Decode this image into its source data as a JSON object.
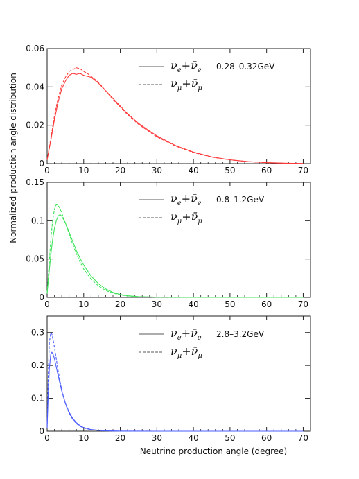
{
  "figure": {
    "ylabel": "Normalized production angle distribution",
    "xlabel": "Neutrino production angle (degree)"
  },
  "chart_data": [
    {
      "type": "line",
      "xlim": [
        0,
        72
      ],
      "ylim": [
        0,
        0.06
      ],
      "xticks": [
        "0",
        "10",
        "20",
        "30",
        "40",
        "50",
        "60",
        "70"
      ],
      "yticks": [
        "0",
        "0.02",
        "0.04",
        "0.06"
      ],
      "color": "#ff3b3b",
      "legend": {
        "energy": "0.28–0.32GeV"
      },
      "series": [
        {
          "name": "νe+ν̄e",
          "style": "solid",
          "x": [
            0,
            1,
            2,
            3,
            4,
            5,
            6,
            7,
            8,
            9,
            10,
            11,
            12,
            14,
            16,
            18,
            20,
            22,
            25,
            28,
            30,
            35,
            40,
            45,
            50,
            55,
            60,
            65,
            70
          ],
          "y": [
            0.002,
            0.012,
            0.023,
            0.032,
            0.039,
            0.043,
            0.046,
            0.047,
            0.0465,
            0.047,
            0.046,
            0.0455,
            0.045,
            0.042,
            0.038,
            0.034,
            0.03,
            0.026,
            0.021,
            0.017,
            0.0145,
            0.0095,
            0.006,
            0.0035,
            0.002,
            0.001,
            0.0005,
            0.0002,
            0.0001
          ]
        },
        {
          "name": "νμ+ν̄μ",
          "style": "dashed",
          "x": [
            0,
            1,
            2,
            3,
            4,
            5,
            6,
            7,
            8,
            9,
            10,
            11,
            12,
            14,
            16,
            18,
            20,
            22,
            25,
            28,
            30,
            35,
            40,
            45,
            50,
            55,
            60,
            65,
            70
          ],
          "y": [
            0.002,
            0.013,
            0.025,
            0.034,
            0.041,
            0.045,
            0.048,
            0.049,
            0.05,
            0.0495,
            0.048,
            0.047,
            0.0455,
            0.0425,
            0.038,
            0.0335,
            0.0295,
            0.0255,
            0.0205,
            0.0165,
            0.014,
            0.0092,
            0.0058,
            0.0034,
            0.0019,
            0.001,
            0.0005,
            0.0002,
            0.0001
          ]
        }
      ]
    },
    {
      "type": "line",
      "xlim": [
        0,
        72
      ],
      "ylim": [
        0,
        0.15
      ],
      "xticks": [
        "0",
        "10",
        "20",
        "30",
        "40",
        "50",
        "60",
        "70"
      ],
      "yticks": [
        "0",
        "0.05",
        "0.1",
        "0.15"
      ],
      "color": "#3fe35a",
      "legend": {
        "energy": "0.8–1.2GeV"
      },
      "series": [
        {
          "name": "νe+ν̄e",
          "style": "solid",
          "x": [
            0,
            0.5,
            1,
            1.5,
            2,
            2.5,
            3,
            3.5,
            4,
            5,
            6,
            7,
            8,
            9,
            10,
            12,
            14,
            16,
            18,
            20,
            22,
            25,
            30,
            40,
            50,
            60,
            70
          ],
          "y": [
            0.005,
            0.03,
            0.055,
            0.075,
            0.09,
            0.1,
            0.106,
            0.108,
            0.106,
            0.097,
            0.085,
            0.073,
            0.061,
            0.051,
            0.042,
            0.028,
            0.018,
            0.011,
            0.0065,
            0.0038,
            0.0022,
            0.001,
            0.0003,
            0.0001,
            0,
            0,
            0
          ]
        },
        {
          "name": "νμ+ν̄μ",
          "style": "dashed",
          "x": [
            0,
            0.5,
            1,
            1.5,
            2,
            2.5,
            3,
            3.5,
            4,
            5,
            6,
            7,
            8,
            9,
            10,
            12,
            14,
            16,
            18,
            20,
            22,
            25,
            30,
            40,
            50,
            60,
            70
          ],
          "y": [
            0.006,
            0.04,
            0.075,
            0.1,
            0.115,
            0.121,
            0.12,
            0.116,
            0.11,
            0.097,
            0.083,
            0.069,
            0.057,
            0.046,
            0.037,
            0.024,
            0.015,
            0.009,
            0.0055,
            0.0032,
            0.0019,
            0.0009,
            0.0003,
            0.0001,
            0,
            0,
            0
          ]
        }
      ]
    },
    {
      "type": "line",
      "xlim": [
        0,
        72
      ],
      "ylim": [
        0,
        0.35
      ],
      "xticks": [
        "0",
        "10",
        "20",
        "30",
        "40",
        "50",
        "60",
        "70"
      ],
      "yticks": [
        "0",
        "0.1",
        "0.2",
        "0.3"
      ],
      "color": "#4a5cff",
      "legend": {
        "energy": "2.8–3.2GeV"
      },
      "series": [
        {
          "name": "νe+ν̄e",
          "style": "solid",
          "x": [
            0,
            0.3,
            0.6,
            1,
            1.3,
            1.6,
            2,
            2.5,
            3,
            3.5,
            4,
            5,
            6,
            7,
            8,
            9,
            10,
            12,
            15,
            20,
            30,
            40,
            50,
            60,
            70
          ],
          "y": [
            0.01,
            0.11,
            0.19,
            0.235,
            0.24,
            0.235,
            0.22,
            0.195,
            0.17,
            0.145,
            0.122,
            0.085,
            0.058,
            0.039,
            0.026,
            0.017,
            0.011,
            0.005,
            0.0015,
            0.0003,
            0,
            0,
            0,
            0,
            0
          ]
        },
        {
          "name": "νμ+ν̄μ",
          "style": "dashed",
          "x": [
            0,
            0.3,
            0.6,
            1,
            1.3,
            1.6,
            2,
            2.5,
            3,
            3.5,
            4,
            5,
            6,
            7,
            8,
            9,
            10,
            12,
            15,
            20,
            30,
            40,
            50,
            60,
            70
          ],
          "y": [
            0.01,
            0.17,
            0.27,
            0.3,
            0.295,
            0.28,
            0.255,
            0.22,
            0.185,
            0.153,
            0.125,
            0.083,
            0.055,
            0.036,
            0.023,
            0.015,
            0.0095,
            0.0045,
            0.0013,
            0.0002,
            0,
            0,
            0,
            0,
            0
          ]
        }
      ]
    }
  ]
}
